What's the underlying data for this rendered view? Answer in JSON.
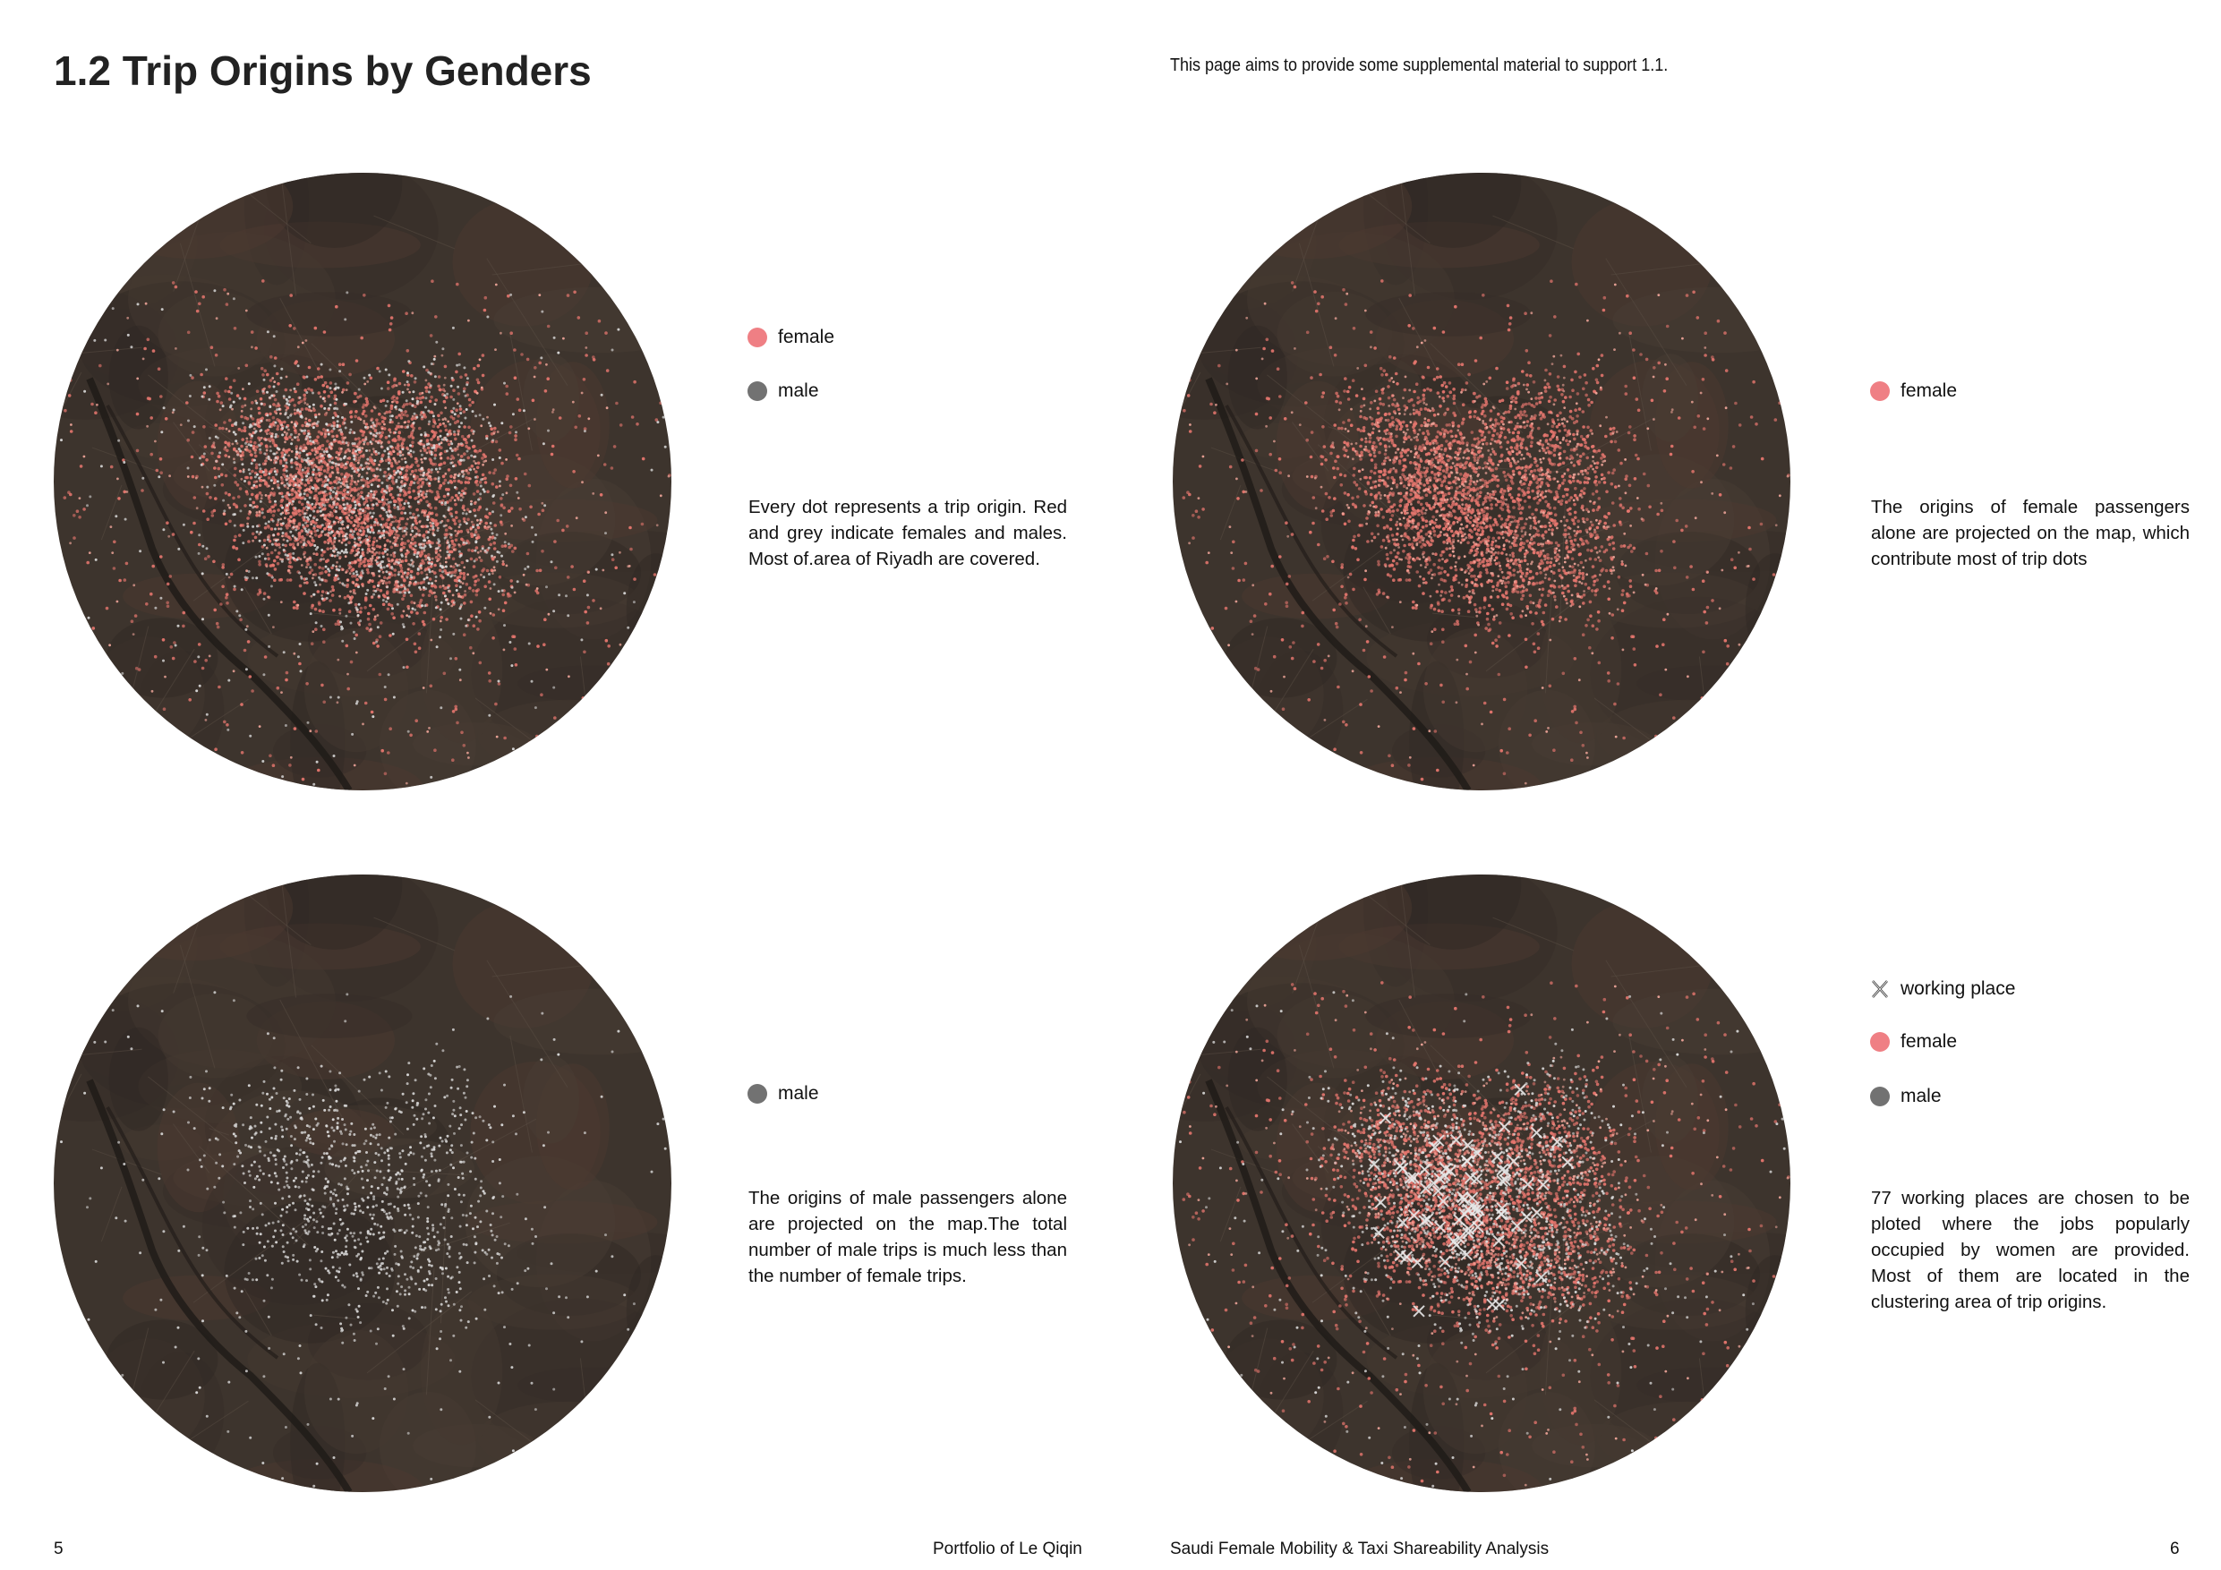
{
  "page": {
    "title": "1.2 Trip Origins by Genders",
    "intro": "This page aims to provide some supplemental material to support 1.1."
  },
  "colors": {
    "female": "#ef7f84",
    "male": "#727272",
    "basemap": "#3d342d",
    "working_place": "#e8e8e8"
  },
  "panels": [
    {
      "id": "both",
      "show_female": true,
      "show_male": true,
      "show_work": false,
      "legend": [
        {
          "type": "female",
          "label": "female"
        },
        {
          "type": "male",
          "label": "male"
        }
      ],
      "description": "Every dot represents a trip origin. Red and grey indicate females and males. Most of.area of Riyadh are covered."
    },
    {
      "id": "female",
      "show_female": true,
      "show_male": false,
      "show_work": false,
      "legend": [
        {
          "type": "female",
          "label": "female"
        }
      ],
      "description": "The origins of female passengers alone are projected on the map, which contribute most of trip dots"
    },
    {
      "id": "male",
      "show_female": false,
      "show_male": true,
      "show_work": false,
      "legend": [
        {
          "type": "male",
          "label": "male"
        }
      ],
      "description": "The origins of male passengers alone are projected on the map.The total number of male trips is much less than the number of female trips."
    },
    {
      "id": "work",
      "show_female": true,
      "show_male": true,
      "show_work": true,
      "legend": [
        {
          "type": "x",
          "label": "working place"
        },
        {
          "type": "female",
          "label": "female"
        },
        {
          "type": "male",
          "label": "male"
        }
      ],
      "description": "77 working places are chosen to be ploted where the jobs popularly occupied by women are provided. Most of them are located in the clustering area of trip origins."
    }
  ],
  "footer": {
    "left_page_number": "5",
    "left_caption": "Portfolio of Le Qiqin",
    "right_caption": "Saudi Female Mobility & Taxi Shareability Analysis",
    "right_page_number": "6"
  }
}
